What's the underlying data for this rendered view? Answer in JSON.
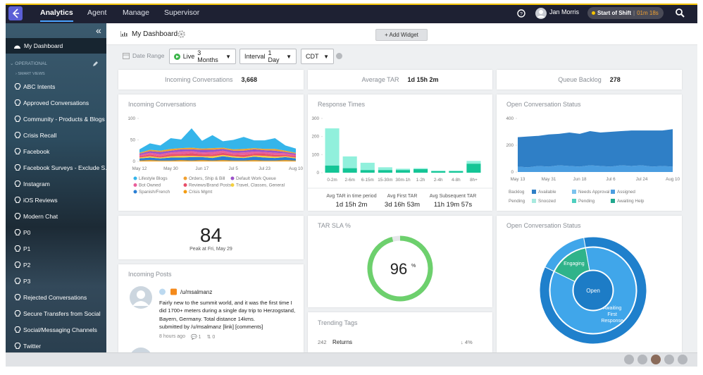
{
  "nav": {
    "tabs": [
      "Analytics",
      "Agent",
      "Manage",
      "Supervisor"
    ],
    "user": "Jan Morris",
    "shift": "Start of Shift",
    "timer": "01m 18s"
  },
  "sidebar": {
    "dashboard": "My Dashboard",
    "section": "OPERATIONAL",
    "subsection": "SMART VIEWS",
    "items": [
      "ABC Intents",
      "Approved Conversations",
      "Community - Products & Blogs",
      "Crisis Recall",
      "Facebook",
      "Facebook Surveys - Exclude S...",
      "Instagram",
      "iOS Reviews",
      "Modern Chat",
      "P0",
      "P1",
      "P2",
      "P3",
      "Rejected Conversations",
      "Secure Transfers from Social",
      "Social/Messaging Channels",
      "Twitter"
    ]
  },
  "header": {
    "title": "My Dashboard",
    "add_widget": "+ Add Widget"
  },
  "filters": {
    "date_range": "Date Range",
    "live": "Live",
    "period": "3 Months",
    "interval_label": "Interval",
    "interval": "1 Day",
    "timezone": "CDT"
  },
  "stats": [
    {
      "label": "Incoming Conversations",
      "value": "3,668"
    },
    {
      "label": "Average TAR",
      "value": "1d 15h 2m"
    },
    {
      "label": "Queue Backlog",
      "value": "278"
    }
  ],
  "incoming": {
    "chart_data": {
      "type": "area",
      "title": "Incoming Conversations",
      "stacked": true,
      "grid": false,
      "categories": [
        "May 12",
        null,
        null,
        "May 30",
        null,
        null,
        "Jun 17",
        null,
        null,
        "Jul 5",
        null,
        null,
        "Jul 23",
        null,
        null,
        "Aug 10"
      ],
      "ylim": [
        0,
        100
      ],
      "yticks": [
        0,
        50,
        100
      ],
      "series": [
        {
          "name": "Lifestyle Blogs",
          "color": "#35b5ea",
          "values": [
            8,
            15,
            12,
            25,
            20,
            45,
            18,
            30,
            15,
            22,
            28,
            18,
            20,
            25,
            12,
            10
          ]
        },
        {
          "name": "Orders, Ship & Bill",
          "color": "#f0a030",
          "values": [
            2,
            3,
            3,
            4,
            3,
            4,
            3,
            4,
            3,
            3,
            4,
            3,
            3,
            4,
            3,
            2
          ]
        },
        {
          "name": "Default Work Queue",
          "color": "#9b51c9",
          "values": [
            3,
            4,
            5,
            4,
            5,
            4,
            6,
            5,
            4,
            5,
            4,
            5,
            4,
            5,
            3,
            3
          ]
        },
        {
          "name": "Bot Owned",
          "color": "#e95f9b",
          "values": [
            3,
            4,
            5,
            4,
            6,
            5,
            4,
            6,
            5,
            4,
            6,
            5,
            4,
            5,
            4,
            3
          ]
        },
        {
          "name": "Reviews/Brand Posts",
          "color": "#e84f6a",
          "values": [
            3,
            4,
            3,
            5,
            4,
            6,
            5,
            4,
            5,
            4,
            5,
            4,
            5,
            4,
            3,
            3
          ]
        },
        {
          "name": "Travel, Classes, General",
          "color": "#f4d03f",
          "values": [
            2,
            3,
            2,
            3,
            4,
            3,
            2,
            4,
            3,
            3,
            2,
            3,
            4,
            3,
            2,
            2
          ]
        },
        {
          "name": "Spanish/French",
          "color": "#2a7fd4",
          "values": [
            5,
            6,
            5,
            7,
            6,
            8,
            7,
            6,
            9,
            7,
            6,
            8,
            7,
            6,
            7,
            5
          ]
        },
        {
          "name": "Crisis Mgmt",
          "color": "#f39c12",
          "values": [
            2,
            3,
            2,
            2,
            3,
            2,
            3,
            2,
            3,
            2,
            2,
            3,
            2,
            2,
            3,
            2
          ]
        }
      ]
    }
  },
  "response": {
    "chart_data": {
      "type": "bar",
      "title": "Response Times",
      "stacked": true,
      "grid": false,
      "categories": [
        "0-2m",
        "2-6m",
        "6-15m",
        "15-30m",
        "30m-1h",
        "1-2h",
        "2-4h",
        "4-8h",
        "8h+"
      ],
      "ylim": [
        0,
        300
      ],
      "yticks": [
        0,
        100,
        200,
        300
      ],
      "series": [
        {
          "color": "#14c596",
          "values": [
            40,
            25,
            15,
            15,
            15,
            20,
            8,
            8,
            50
          ]
        },
        {
          "color": "#91f0dc",
          "values": [
            205,
            65,
            40,
            15,
            7,
            5,
            4,
            4,
            15
          ]
        }
      ]
    },
    "stats": [
      {
        "label": "Avg TAR in time period",
        "value": "1d 15h 2m"
      },
      {
        "label": "Avg First TAR",
        "value": "3d 16h 53m"
      },
      {
        "label": "Avg Subsequent TAR",
        "value": "11h 19m 57s"
      }
    ]
  },
  "open": {
    "chart_data": {
      "type": "area",
      "title": "Open Conversation Status",
      "stacked": true,
      "grid": false,
      "categories": [
        "May 13",
        null,
        null,
        "May 31",
        null,
        null,
        "Jun 18",
        null,
        null,
        "Jul 6",
        null,
        null,
        "Jul 24",
        null,
        null,
        "Aug 10"
      ],
      "ylim": [
        0,
        400
      ],
      "yticks": [
        0,
        200,
        400
      ],
      "legend_groups": [
        "Backlog",
        "Pending"
      ],
      "series": [
        {
          "name": "Available",
          "color": "#2f7fc6",
          "values": [
            220,
            230,
            225,
            240,
            235,
            250,
            245,
            255,
            250,
            260,
            255,
            265,
            260,
            270,
            265,
            280
          ]
        },
        {
          "name": "Needs Approval",
          "color": "#7cc3ee",
          "values": [
            0,
            0,
            0,
            0,
            0,
            0,
            0,
            0,
            0,
            0,
            0,
            0,
            0,
            0,
            0,
            0
          ]
        },
        {
          "name": "Assigned",
          "color": "#4a9de0",
          "values": [
            40,
            35,
            45,
            40,
            50,
            45,
            40,
            50,
            45,
            40,
            50,
            45,
            50,
            40,
            45,
            40
          ]
        },
        {
          "name": "Snoozed",
          "color": "#a8eadf",
          "values": [
            0,
            0,
            0,
            0,
            0,
            0,
            0,
            0,
            0,
            0,
            0,
            0,
            0,
            0,
            0,
            0
          ]
        },
        {
          "name": "Pending",
          "color": "#4fcfbf",
          "values": [
            0,
            0,
            0,
            0,
            0,
            0,
            0,
            0,
            0,
            0,
            0,
            0,
            0,
            0,
            0,
            0
          ]
        },
        {
          "name": "Awaiting Help",
          "color": "#20a88e",
          "values": [
            0,
            0,
            0,
            0,
            0,
            0,
            0,
            0,
            0,
            0,
            0,
            0,
            0,
            0,
            0,
            0
          ]
        }
      ]
    }
  },
  "peak": {
    "value": "84",
    "caption": "Peak at Fri, May 29"
  },
  "tar_sla": {
    "chart_data": {
      "type": "gauge",
      "title": "TAR SLA %",
      "value": 96,
      "unit": "%",
      "ylim": [
        0,
        100
      ],
      "color": "#6dd06d"
    }
  },
  "donut": {
    "chart_data": {
      "type": "sunburst",
      "title": "Open Conversation Status",
      "center": {
        "name": "Open",
        "color": "#1d7cc6"
      },
      "ring": [
        {
          "name": "Engaging",
          "value": 15,
          "color": "#2fb38a",
          "outer_color": "#40a6ea"
        },
        {
          "name": "Awaiting First Response",
          "value": 85,
          "color": "#40a6ea",
          "outer_color": "#1f80cc"
        }
      ]
    }
  },
  "posts": {
    "title": "Incoming Posts",
    "author": "/u/msalmanz",
    "text": "Fairly new to the summit world, and it was the first time I did 1700+ meters during a single day trip to Herzogstand, Bayern, Germany. Total distance 14kms.",
    "submitted": "submitted by /u/msalmanz [link] [comments]",
    "time": "8 hours ago",
    "comments": "1",
    "retweets": "0"
  },
  "trending": {
    "title": "Trending Tags",
    "tags": [
      {
        "count": "242",
        "name": "Returns",
        "change": "4%"
      }
    ]
  }
}
